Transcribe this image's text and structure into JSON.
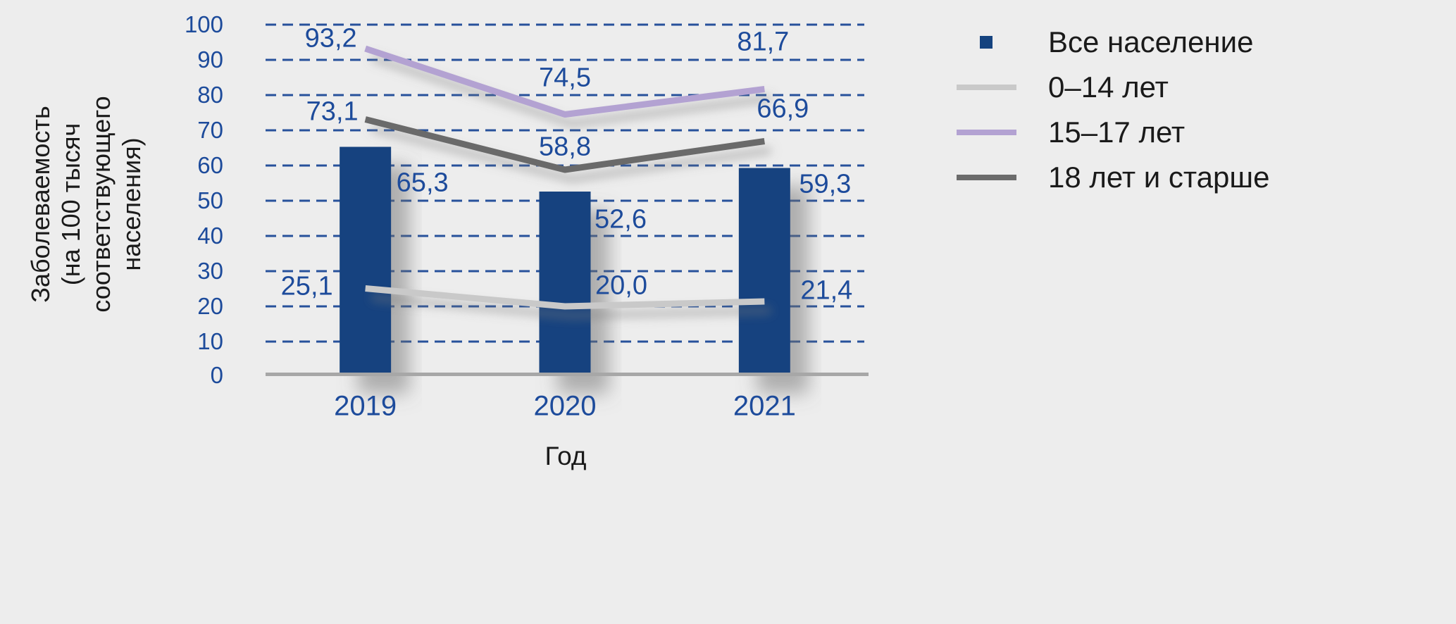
{
  "page": {
    "background_color": "#EDEDED"
  },
  "chart_data": {
    "type": "bar+line",
    "title": "",
    "categories": [
      "2019",
      "2020",
      "2021"
    ],
    "xlabel": "Год",
    "ylabel": "Заболеваемость (на 100 тысяч соответствующего населения)",
    "ylabel_lines": [
      "Заболеваемость",
      "(на 100 тысяч соответствующего",
      "населения)"
    ],
    "ylim": [
      0,
      100
    ],
    "ytick_step": 10,
    "yticks": [
      0,
      10,
      20,
      30,
      40,
      50,
      60,
      70,
      80,
      90,
      100
    ],
    "grid": "horizontal dashed",
    "grid_color": "#27519B",
    "axis_line_color": "#A7A7A7",
    "tick_label_color": "#1D4B9B",
    "data_label_color": "#1D4B9B",
    "legend_position": "right",
    "series": [
      {
        "name": "Все население",
        "type": "bar",
        "marker": "square",
        "color": "#15437F",
        "values": [
          65.3,
          52.6,
          59.3
        ],
        "labels": [
          "65,3",
          "52,6",
          "59,3"
        ]
      },
      {
        "name": "0–14 лет",
        "type": "line",
        "marker": "line",
        "color": "#C9C9C9",
        "values": [
          25.1,
          20.0,
          21.4
        ],
        "labels": [
          "25,1",
          "20,0",
          "21,4"
        ]
      },
      {
        "name": "15–17 лет",
        "type": "line",
        "marker": "line",
        "color": "#B3A2D2",
        "values": [
          93.2,
          74.5,
          81.7
        ],
        "labels": [
          "93,2",
          "74,5",
          "81,7"
        ]
      },
      {
        "name": "18 лет и старше",
        "type": "line",
        "marker": "line",
        "color": "#6B6B6B",
        "values": [
          73.1,
          58.8,
          66.9
        ],
        "labels": [
          "73,1",
          "58,8",
          "66,9"
        ]
      }
    ]
  }
}
